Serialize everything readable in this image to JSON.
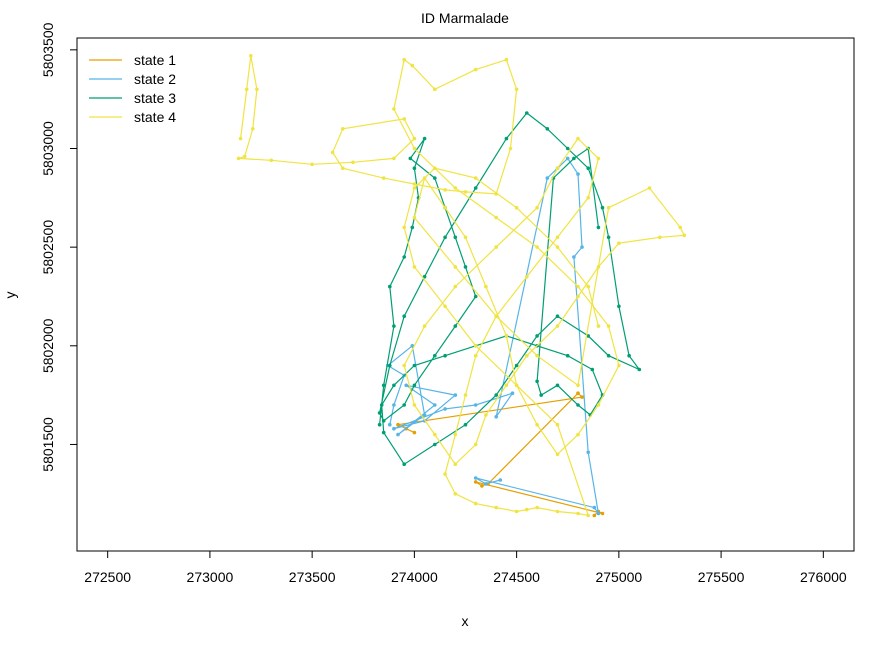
{
  "chart_data": {
    "type": "line",
    "title": "ID Marmalade",
    "xlabel": "x",
    "ylabel": "y",
    "xlim": [
      272350,
      276150
    ],
    "ylim": [
      5800960,
      5803560
    ],
    "x_ticks": [
      272500,
      273000,
      273500,
      274000,
      274500,
      275000,
      275500,
      276000
    ],
    "y_ticks": [
      5801500,
      5802000,
      5802500,
      5803000,
      5803500
    ],
    "x_tick_labels": [
      "272500",
      "273000",
      "273500",
      "274000",
      "274500",
      "275000",
      "275500",
      "276000"
    ],
    "y_tick_labels": [
      "5801500",
      "5802000",
      "5802500",
      "5803000",
      "5803500"
    ],
    "grid": false,
    "legend_position": "top-left",
    "series": [
      {
        "name": "state 1",
        "color": "#E69F00",
        "x": [
          274880,
          274900,
          274920,
          274300,
          274330,
          274360,
          274800,
          274820,
          273920,
          273960,
          274000
        ],
        "y": [
          5801140,
          5801160,
          5801150,
          5801310,
          5801290,
          5801300,
          5801760,
          5801740,
          5801600,
          5801580,
          5801560
        ]
      },
      {
        "name": "state 2",
        "color": "#56B4E9",
        "x": [
          273880,
          273900,
          273950,
          273870,
          273990,
          274050,
          273920,
          274100,
          273960,
          274200,
          274050,
          273900,
          274150,
          274300,
          274480,
          274400,
          274650,
          274700,
          274750,
          274800,
          274820,
          274780,
          274850,
          274900,
          274880,
          274300,
          274350,
          274420
        ],
        "y": [
          5801600,
          5801700,
          5801850,
          5801900,
          5802000,
          5801650,
          5801550,
          5801700,
          5801800,
          5801750,
          5801620,
          5801580,
          5801680,
          5801700,
          5801760,
          5801640,
          5802850,
          5802900,
          5802950,
          5802870,
          5802500,
          5802450,
          5801460,
          5801150,
          5801180,
          5801330,
          5801300,
          5801320
        ]
      },
      {
        "name": "state 3",
        "color": "#009E73",
        "x": [
          273830,
          273850,
          273900,
          273880,
          273950,
          273990,
          274020,
          274000,
          274050,
          273980,
          274100,
          274150,
          274200,
          274250,
          274300,
          274200,
          274100,
          274000,
          273950,
          273850,
          273830,
          273880,
          273950,
          274050,
          274150,
          274300,
          274450,
          274550,
          274650,
          274750,
          274850,
          274920,
          274950,
          275000,
          275050,
          275100,
          274950,
          274850,
          274700,
          274600,
          274500,
          274400,
          274250,
          274100,
          273950,
          273850,
          273840,
          273900,
          274000,
          274150,
          274300,
          274450,
          274600,
          274750,
          274870,
          274920,
          274860,
          274800,
          274700,
          274620,
          274600,
          274680,
          274780,
          274850,
          274900
        ],
        "y": [
          5801600,
          5801800,
          5802100,
          5802300,
          5802450,
          5802600,
          5802750,
          5802900,
          5803050,
          5802950,
          5802850,
          5802700,
          5802550,
          5802400,
          5802250,
          5802100,
          5801950,
          5801800,
          5801700,
          5801620,
          5801660,
          5801900,
          5802150,
          5802350,
          5802550,
          5802800,
          5803050,
          5803180,
          5803100,
          5803000,
          5802900,
          5802700,
          5802550,
          5802200,
          5801950,
          5801880,
          5801950,
          5802050,
          5802150,
          5802050,
          5801900,
          5801750,
          5801600,
          5801500,
          5801400,
          5801560,
          5801700,
          5801800,
          5801900,
          5801950,
          5802000,
          5802050,
          5802000,
          5801950,
          5801880,
          5801750,
          5801650,
          5801700,
          5801800,
          5801750,
          5801820,
          5802850,
          5802950,
          5803000,
          5802600
        ]
      },
      {
        "name": "state 4",
        "color": "#F0E442",
        "x": [
          273150,
          273180,
          273200,
          273230,
          273210,
          273170,
          273140,
          273300,
          273500,
          273700,
          273900,
          274000,
          273950,
          273650,
          273600,
          273650,
          273850,
          274000,
          274150,
          274250,
          274400,
          274470,
          274500,
          274450,
          274300,
          274100,
          273990,
          273950,
          273900,
          274000,
          274200,
          274400,
          274600,
          274800,
          274950,
          275000,
          274900,
          274800,
          274700,
          274600,
          274500,
          274450,
          274350,
          274250,
          274150,
          274050,
          274000,
          274200,
          274400,
          274600,
          274800,
          274950,
          275150,
          275300,
          275320,
          275200,
          275000,
          274900,
          274800,
          274700,
          274550,
          274450,
          274350,
          274300,
          274200,
          274100,
          274000,
          273950,
          274050,
          274200,
          274400,
          274600,
          274700,
          274800,
          274900,
          274850,
          274700,
          274550,
          274400,
          274300,
          274250,
          274200,
          274150,
          274200,
          274300,
          274400,
          274500,
          274550,
          274600,
          274700,
          274800,
          274850,
          274700,
          274500,
          274300,
          274150,
          274000,
          273950,
          274000,
          274100,
          274300,
          274500,
          274700,
          274850,
          274900
        ],
        "y": [
          5803050,
          5803300,
          5803470,
          5803300,
          5803100,
          5802960,
          5802950,
          5802940,
          5802920,
          5802930,
          5802950,
          5803050,
          5803150,
          5803100,
          5802980,
          5802900,
          5802850,
          5802820,
          5802790,
          5802780,
          5802770,
          5803000,
          5803300,
          5803450,
          5803400,
          5803300,
          5803420,
          5803450,
          5803200,
          5803000,
          5802800,
          5802650,
          5802500,
          5802300,
          5802100,
          5801900,
          5801700,
          5801550,
          5801450,
          5801600,
          5801800,
          5802050,
          5802300,
          5802550,
          5802700,
          5802850,
          5802650,
          5802400,
          5802150,
          5801950,
          5801800,
          5802700,
          5802800,
          5802600,
          5802560,
          5802550,
          5802520,
          5802400,
          5802250,
          5802100,
          5801950,
          5801800,
          5801650,
          5801500,
          5801400,
          5801550,
          5801700,
          5801900,
          5802100,
          5802300,
          5802500,
          5802700,
          5802900,
          5803050,
          5802950,
          5802750,
          5802550,
          5802350,
          5802150,
          5801950,
          5801750,
          5801550,
          5801350,
          5801250,
          5801200,
          5801180,
          5801160,
          5801170,
          5801180,
          5801160,
          5801150,
          5801140,
          5801600,
          5801800,
          5802000,
          5802200,
          5802400,
          5802600,
          5802800,
          5802900,
          5802850,
          5802700,
          5802500,
          5802300,
          5802100
        ]
      }
    ]
  }
}
